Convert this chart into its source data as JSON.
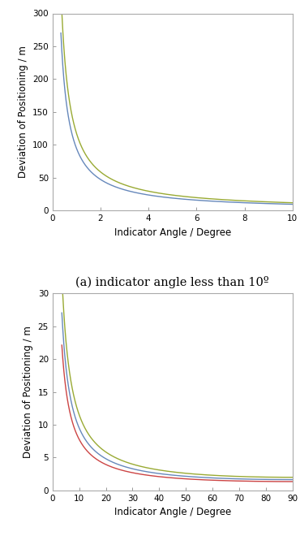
{
  "fig_width": 3.7,
  "fig_height": 6.6,
  "dpi": 100,
  "background_color": "#ffffff",
  "plot1": {
    "xlim": [
      0,
      10
    ],
    "ylim": [
      0,
      300
    ],
    "xticks": [
      0,
      2,
      4,
      6,
      8,
      10
    ],
    "yticks": [
      0,
      50,
      100,
      150,
      200,
      250,
      300
    ],
    "xlabel": "Indicator Angle / Degree",
    "ylabel": "Deviation of Positioning / m",
    "caption": "(a) indicator angle less than 10º",
    "curves": [
      {
        "color": "#6688bb",
        "lw": 1.0,
        "scale": 1.65
      },
      {
        "color": "#99aa33",
        "lw": 1.0,
        "scale": 2.05
      }
    ],
    "x_start": 0.35,
    "x_end": 10.0,
    "n_points": 2000
  },
  "plot2": {
    "xlim": [
      0,
      90
    ],
    "ylim": [
      0,
      30
    ],
    "xticks": [
      0,
      10,
      20,
      30,
      40,
      50,
      60,
      70,
      80,
      90
    ],
    "yticks": [
      0,
      5,
      10,
      15,
      20,
      25,
      30
    ],
    "xlabel": "Indicator Angle / Degree",
    "ylabel": "Deviation of Positioning / m",
    "caption": "",
    "curves": [
      {
        "color": "#6688bb",
        "lw": 1.0,
        "scale": 1.65
      },
      {
        "color": "#99aa33",
        "lw": 1.0,
        "scale": 2.0
      },
      {
        "color": "#cc4444",
        "lw": 1.0,
        "scale": 1.35
      }
    ],
    "x_start": 3.5,
    "x_end": 90.0,
    "n_points": 2000
  },
  "axis_color": "#aaaaaa",
  "tick_labelsize": 7.5,
  "label_fontsize": 8.5,
  "caption_fontsize": 10.5,
  "spine_lw": 0.8
}
